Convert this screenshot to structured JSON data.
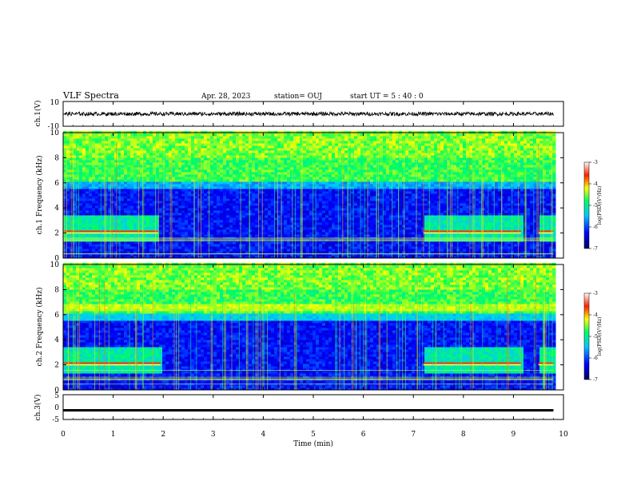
{
  "header": {
    "title": "VLF Spectra",
    "date": "Apr. 28, 2023",
    "station": "station= OUJ",
    "start": "start  UT =   5 : 40 : 0"
  },
  "chart_data": [
    {
      "type": "line",
      "panel": "ch1-waveform",
      "ylabel": "ch.1(V)",
      "ylim": [
        -10,
        10
      ],
      "yticks": [
        "10",
        "-10"
      ],
      "description_values": {
        "mean": 0,
        "amplitude_approx": 1.5
      }
    },
    {
      "type": "heatmap",
      "panel": "ch1-spectrogram",
      "ylabel": "ch.1 Frequency (kHz)",
      "xlim": [
        0,
        10
      ],
      "ylim": [
        0,
        10
      ],
      "yticks": [
        "0",
        "2",
        "4",
        "6",
        "8",
        "10"
      ],
      "colorbar": {
        "label": "log(PSD)(V²/Hz)",
        "range": [
          -7,
          -3
        ],
        "ticks": [
          "-3",
          "-4",
          "-5",
          "-6",
          "-7"
        ]
      },
      "features": {
        "noise_band_khz": [
          6,
          10
        ],
        "tone_khz": 2.1,
        "tone_active_min": [
          [
            0,
            1.9
          ],
          [
            7.2,
            9.15
          ],
          [
            9.5,
            9.8
          ]
        ],
        "data_end_min": 9.8
      }
    },
    {
      "type": "heatmap",
      "panel": "ch2-spectrogram",
      "ylabel": "ch.2 Frequency (kHz)",
      "xlim": [
        0,
        10
      ],
      "ylim": [
        0,
        10
      ],
      "yticks": [
        "0",
        "2",
        "4",
        "6",
        "8",
        "10"
      ],
      "colorbar": {
        "label": "log(PSD)(V²/Hz)",
        "range": [
          -7,
          -3
        ],
        "ticks": [
          "-3",
          "-4",
          "-5",
          "-6",
          "-7"
        ]
      },
      "features": {
        "noise_band_khz": [
          6,
          10
        ],
        "band_khz": 6.5,
        "tone_khz": 2.1,
        "tone_active_min": [
          [
            0,
            1.95
          ],
          [
            7.2,
            9.15
          ],
          [
            9.5,
            9.8
          ]
        ],
        "data_end_min": 9.8
      }
    },
    {
      "type": "line",
      "panel": "ch3-waveform",
      "ylabel": "ch.3(V)",
      "ylim": [
        -5,
        5
      ],
      "yticks": [
        "5",
        "0",
        "-5"
      ],
      "description_values": {
        "mean": -1,
        "amplitude_approx": 0.2
      }
    }
  ],
  "xaxis": {
    "label": "Time (min)",
    "ticks": [
      "0",
      "1",
      "2",
      "3",
      "4",
      "5",
      "6",
      "7",
      "8",
      "9",
      "10"
    ]
  }
}
